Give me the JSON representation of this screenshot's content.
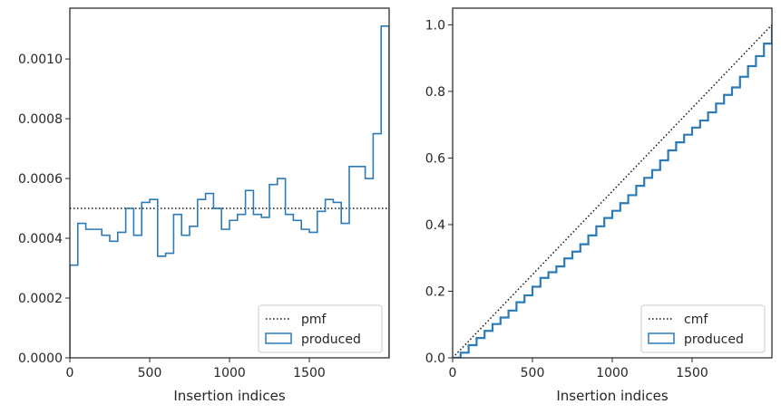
{
  "chart_data": [
    {
      "type": "histogram",
      "xlabel": "Insertion indices",
      "ylabel": "",
      "xlim": [
        0,
        2000
      ],
      "ylim": [
        0,
        0.00117
      ],
      "xticks": [
        0,
        500,
        1000,
        1500
      ],
      "xtick_labels": [
        "0",
        "500",
        "1000",
        "1500"
      ],
      "yticks": [
        0,
        0.0002,
        0.0004,
        0.0006,
        0.0008,
        0.001
      ],
      "ytick_labels": [
        "0.0000",
        "0.0002",
        "0.0004",
        "0.0006",
        "0.0008",
        "0.0010"
      ],
      "legend_position": "bottom-right",
      "legend": [
        "pmf",
        "produced"
      ],
      "reference_line": {
        "name": "pmf",
        "value": 0.0005,
        "style": "dotted",
        "color": "#111111"
      },
      "series": [
        {
          "name": "produced",
          "style": "step",
          "color": "#2b7bb9",
          "bin_width": 50,
          "bin_starts": [
            0,
            50,
            100,
            150,
            200,
            250,
            300,
            350,
            400,
            450,
            500,
            550,
            600,
            650,
            700,
            750,
            800,
            850,
            900,
            950,
            1000,
            1050,
            1100,
            1150,
            1200,
            1250,
            1300,
            1350,
            1400,
            1450,
            1500,
            1550,
            1600,
            1650,
            1700,
            1750,
            1800,
            1850,
            1900,
            1950
          ],
          "values": [
            0.00031,
            0.00045,
            0.00043,
            0.00043,
            0.00041,
            0.00039,
            0.00042,
            0.0005,
            0.00041,
            0.00052,
            0.00053,
            0.00034,
            0.00035,
            0.00048,
            0.00041,
            0.00044,
            0.00053,
            0.00055,
            0.0005,
            0.00043,
            0.00046,
            0.00048,
            0.00056,
            0.00048,
            0.00047,
            0.00058,
            0.0006,
            0.00048,
            0.00046,
            0.00043,
            0.00042,
            0.00049,
            0.00053,
            0.00052,
            0.00045,
            0.00064,
            0.00064,
            0.0006,
            0.00075,
            0.00111
          ]
        }
      ]
    },
    {
      "type": "line",
      "xlabel": "Insertion indices",
      "ylabel": "",
      "xlim": [
        0,
        2000
      ],
      "ylim": [
        0,
        1.05
      ],
      "xticks": [
        0,
        500,
        1000,
        1500
      ],
      "xtick_labels": [
        "0",
        "500",
        "1000",
        "1500"
      ],
      "yticks": [
        0,
        0.2,
        0.4,
        0.6,
        0.8,
        1.0
      ],
      "ytick_labels": [
        "0.0",
        "0.2",
        "0.4",
        "0.6",
        "0.8",
        "1.0"
      ],
      "legend_position": "bottom-right",
      "legend": [
        "cmf",
        "produced"
      ],
      "series": [
        {
          "name": "cmf",
          "style": "dotted",
          "color": "#111111",
          "x": [
            0,
            2000
          ],
          "y": [
            0,
            1.0
          ]
        },
        {
          "name": "produced",
          "style": "step",
          "color": "#2b7bb9",
          "x": [
            0,
            50,
            100,
            150,
            200,
            250,
            300,
            350,
            400,
            450,
            500,
            550,
            600,
            650,
            700,
            750,
            800,
            850,
            900,
            950,
            1000,
            1050,
            1100,
            1150,
            1200,
            1250,
            1300,
            1350,
            1400,
            1450,
            1500,
            1550,
            1600,
            1650,
            1700,
            1750,
            1800,
            1850,
            1900,
            1950,
            2000
          ],
          "y": [
            0,
            0.0155,
            0.038,
            0.0595,
            0.081,
            0.1015,
            0.121,
            0.142,
            0.167,
            0.1875,
            0.2135,
            0.24,
            0.257,
            0.2745,
            0.2985,
            0.319,
            0.341,
            0.3675,
            0.395,
            0.42,
            0.4415,
            0.4645,
            0.4885,
            0.5165,
            0.5405,
            0.564,
            0.593,
            0.623,
            0.647,
            0.67,
            0.6915,
            0.7125,
            0.737,
            0.7635,
            0.7895,
            0.812,
            0.844,
            0.876,
            0.906,
            0.9435,
            1.0
          ]
        }
      ]
    }
  ]
}
